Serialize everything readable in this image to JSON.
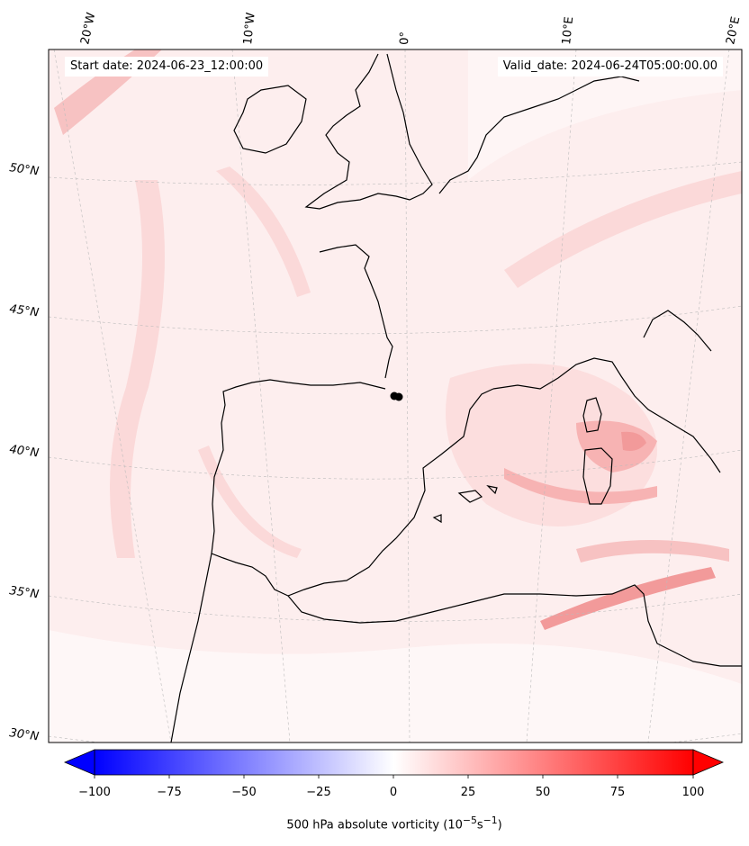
{
  "header": {
    "start_date": "Start date: 2024-06-23_12:00:00",
    "valid_date": "Valid_date: 2024-06-24T05:00:00.00"
  },
  "map": {
    "projection": "conic",
    "extent": {
      "lon_min": -20,
      "lon_max": 20,
      "lat_min": 30,
      "lat_max": 54
    },
    "lon_labels": [
      "20°W",
      "10°W",
      "0°",
      "10°E",
      "20°E"
    ],
    "lat_labels": [
      "50°N",
      "45°N",
      "40°N",
      "35°N",
      "30°N"
    ],
    "field_colors": {
      "background": "#fdeeee",
      "band": "#fbd9d9",
      "strong": "#f7b3b3",
      "peak": "#f29a9a"
    },
    "marker": {
      "description": "black dot near 0° at ~43°N"
    }
  },
  "colorbar": {
    "ticks": [
      "−100",
      "−75",
      "−50",
      "−25",
      "0",
      "25",
      "50",
      "75",
      "100"
    ],
    "label": "500 hPa absolute vorticity (10",
    "label_exp1": "−5",
    "label_mid": "s",
    "label_exp2": "−1",
    "label_end": ")",
    "min_color": "#0000ff",
    "mid_color": "#ffffff",
    "max_color": "#ff0000"
  }
}
